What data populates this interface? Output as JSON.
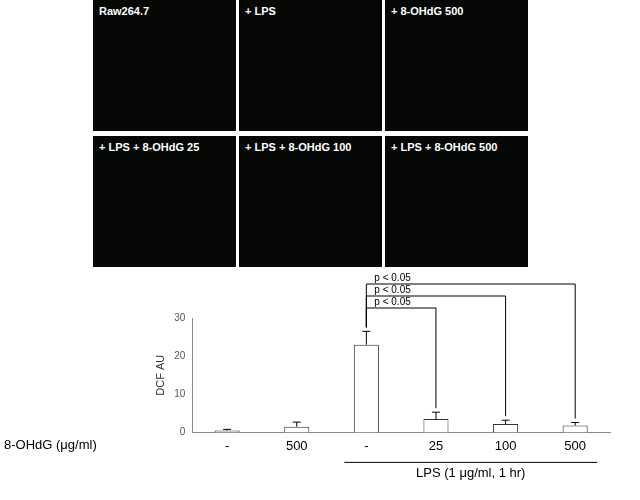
{
  "image_panels": [
    "Raw264.7",
    "+ LPS",
    "+ 8-OHdG 500",
    "+ LPS + 8-OHdG 25",
    "+ LPS + 8-OHdG 100",
    "+ LPS + 8-OHdG 500"
  ],
  "chart_data": {
    "type": "bar",
    "y_label": "DCF AU",
    "x_row_label": "8-OHdG (μg/ml)",
    "categories": [
      "-",
      "500",
      "-",
      "25",
      "100",
      "500"
    ],
    "values": [
      0.5,
      1.5,
      23,
      3.5,
      2.2,
      1.8
    ],
    "errors": [
      0.3,
      1.2,
      3.5,
      1.8,
      1.0,
      0.8
    ],
    "color": "#ffffff",
    "ylim": [
      0,
      30
    ],
    "yticks": [
      0,
      10,
      20,
      30
    ],
    "grid": false,
    "group_labels": [
      {
        "text": "LPS (1 μg/ml, 1 hr)",
        "start": 2,
        "end": 5
      }
    ],
    "annotations": [
      {
        "text": "p < 0.05",
        "from": 2,
        "to": 3
      },
      {
        "text": "p < 0.05",
        "from": 2,
        "to": 4
      },
      {
        "text": "p < 0.05",
        "from": 2,
        "to": 5
      }
    ]
  }
}
